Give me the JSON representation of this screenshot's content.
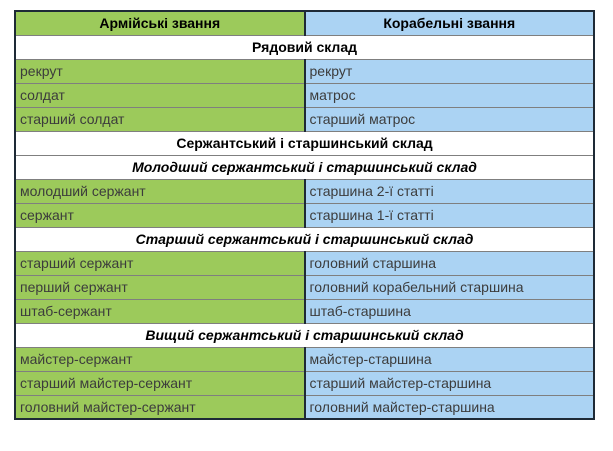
{
  "colors": {
    "army_green": "#9cca5b",
    "navy_blue": "#abd3f3",
    "outer_border": "#1e2a36",
    "inner_border": "#7f7f7f",
    "cell_text": "#3c3c3c",
    "heading_text": "#000000",
    "page_background": "#ffffff"
  },
  "table": {
    "columns": [
      {
        "label": "Армійські звання"
      },
      {
        "label": "Корабельні звання"
      }
    ],
    "rows": [
      {
        "type": "section",
        "label": "Рядовий склад"
      },
      {
        "type": "data",
        "army": "рекрут",
        "navy": "рекрут"
      },
      {
        "type": "data",
        "army": "солдат",
        "navy": "матрос"
      },
      {
        "type": "data",
        "army": "старший солдат",
        "navy": "старший матрос"
      },
      {
        "type": "section",
        "label": "Сержантський і старшинський склад"
      },
      {
        "type": "subsection",
        "label": "Молодший сержантський і старшинський склад"
      },
      {
        "type": "data",
        "army": "молодший сержант",
        "navy": "старшина 2-ї статті"
      },
      {
        "type": "data",
        "army": "сержант",
        "navy": "старшина 1-ї статті"
      },
      {
        "type": "subsection",
        "label": "Старший сержантський і старшинський склад"
      },
      {
        "type": "data",
        "army": "старший сержант",
        "navy": "головний старшина"
      },
      {
        "type": "data",
        "army": "перший сержант",
        "navy": "головний корабельний старшина"
      },
      {
        "type": "data",
        "army": "штаб-сержант",
        "navy": "штаб-старшина"
      },
      {
        "type": "subsection",
        "label": "Вищий сержантський і старшинський склад"
      },
      {
        "type": "data",
        "army": "майстер-сержант",
        "navy": "майстер-старшина"
      },
      {
        "type": "data",
        "army": "старший майстер-сержант",
        "navy": "старший майстер-старшина"
      },
      {
        "type": "data",
        "army": "головний майстер-сержант",
        "navy": "головний майстер-старшина"
      }
    ]
  }
}
